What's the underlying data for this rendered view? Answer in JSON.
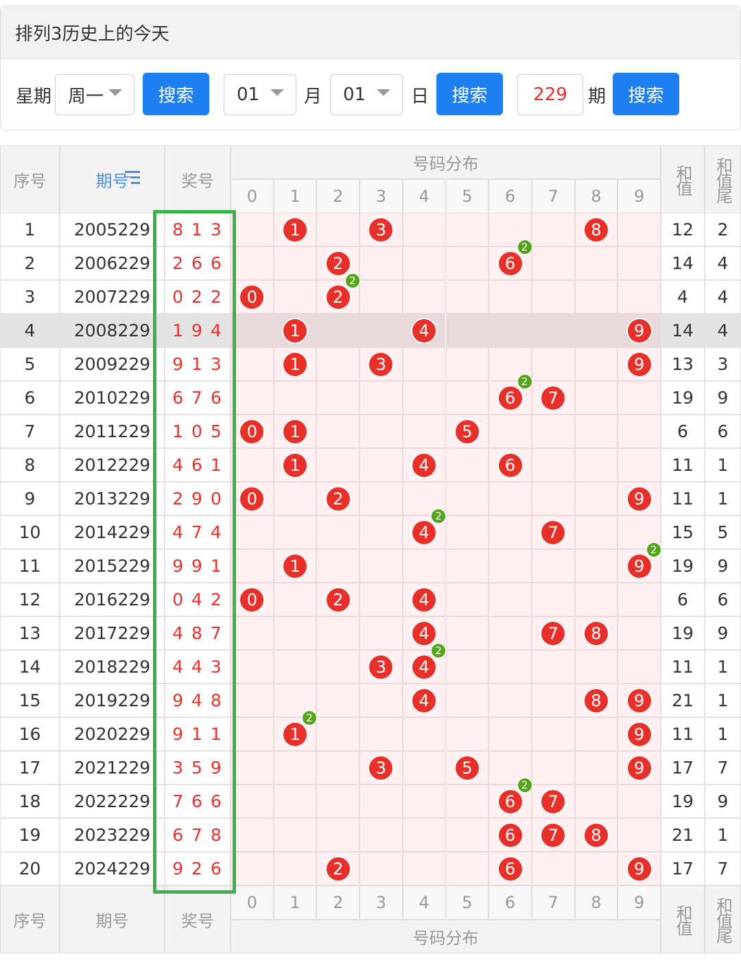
{
  "header": {
    "title": "排列3历史上的今天"
  },
  "controls": {
    "weekday_label": "星期",
    "weekday": "周一",
    "search": "搜索",
    "month": "01",
    "month_label": "月",
    "day": "01",
    "day_label": "日",
    "issue": "229",
    "issue_label": "期"
  },
  "table": {
    "columns": {
      "index": "序号",
      "issue": "期号",
      "number": "奖号",
      "distribution": "号码分布",
      "sum": "和值",
      "sum_tail": "和值尾"
    },
    "digits": [
      0,
      1,
      2,
      3,
      4,
      5,
      6,
      7,
      8,
      9
    ],
    "highlight_row": 4,
    "rows": [
      {
        "index": 1,
        "issue": 2005229,
        "number": "8 1 3",
        "sum": 12,
        "tail": 2,
        "balls": [
          {
            "digit": 1
          },
          {
            "digit": 3
          },
          {
            "digit": 8
          }
        ]
      },
      {
        "index": 2,
        "issue": 2006229,
        "number": "2 6 6",
        "sum": 14,
        "tail": 4,
        "balls": [
          {
            "digit": 2
          },
          {
            "digit": 6,
            "count": 2
          }
        ]
      },
      {
        "index": 3,
        "issue": 2007229,
        "number": "0 2 2",
        "sum": 4,
        "tail": 4,
        "balls": [
          {
            "digit": 0
          },
          {
            "digit": 2,
            "count": 2
          }
        ]
      },
      {
        "index": 4,
        "issue": 2008229,
        "number": "1 9 4",
        "sum": 14,
        "tail": 4,
        "balls": [
          {
            "digit": 1
          },
          {
            "digit": 4
          },
          {
            "digit": 9
          }
        ]
      },
      {
        "index": 5,
        "issue": 2009229,
        "number": "9 1 3",
        "sum": 13,
        "tail": 3,
        "balls": [
          {
            "digit": 1
          },
          {
            "digit": 3
          },
          {
            "digit": 9
          }
        ]
      },
      {
        "index": 6,
        "issue": 2010229,
        "number": "6 7 6",
        "sum": 19,
        "tail": 9,
        "balls": [
          {
            "digit": 6,
            "count": 2
          },
          {
            "digit": 7
          }
        ]
      },
      {
        "index": 7,
        "issue": 2011229,
        "number": "1 0 5",
        "sum": 6,
        "tail": 6,
        "balls": [
          {
            "digit": 0
          },
          {
            "digit": 1
          },
          {
            "digit": 5
          }
        ]
      },
      {
        "index": 8,
        "issue": 2012229,
        "number": "4 6 1",
        "sum": 11,
        "tail": 1,
        "balls": [
          {
            "digit": 1
          },
          {
            "digit": 4
          },
          {
            "digit": 6
          }
        ]
      },
      {
        "index": 9,
        "issue": 2013229,
        "number": "2 9 0",
        "sum": 11,
        "tail": 1,
        "balls": [
          {
            "digit": 0
          },
          {
            "digit": 2
          },
          {
            "digit": 9
          }
        ]
      },
      {
        "index": 10,
        "issue": 2014229,
        "number": "4 7 4",
        "sum": 15,
        "tail": 5,
        "balls": [
          {
            "digit": 4,
            "count": 2
          },
          {
            "digit": 7
          }
        ]
      },
      {
        "index": 11,
        "issue": 2015229,
        "number": "9 9 1",
        "sum": 19,
        "tail": 9,
        "balls": [
          {
            "digit": 1
          },
          {
            "digit": 9,
            "count": 2
          }
        ]
      },
      {
        "index": 12,
        "issue": 2016229,
        "number": "0 4 2",
        "sum": 6,
        "tail": 6,
        "balls": [
          {
            "digit": 0
          },
          {
            "digit": 2
          },
          {
            "digit": 4
          }
        ]
      },
      {
        "index": 13,
        "issue": 2017229,
        "number": "4 8 7",
        "sum": 19,
        "tail": 9,
        "balls": [
          {
            "digit": 4
          },
          {
            "digit": 7
          },
          {
            "digit": 8
          }
        ]
      },
      {
        "index": 14,
        "issue": 2018229,
        "number": "4 4 3",
        "sum": 11,
        "tail": 1,
        "balls": [
          {
            "digit": 3
          },
          {
            "digit": 4,
            "count": 2
          }
        ]
      },
      {
        "index": 15,
        "issue": 2019229,
        "number": "9 4 8",
        "sum": 21,
        "tail": 1,
        "balls": [
          {
            "digit": 4
          },
          {
            "digit": 8
          },
          {
            "digit": 9
          }
        ]
      },
      {
        "index": 16,
        "issue": 2020229,
        "number": "9 1 1",
        "sum": 11,
        "tail": 1,
        "balls": [
          {
            "digit": 1,
            "count": 2
          },
          {
            "digit": 9
          }
        ]
      },
      {
        "index": 17,
        "issue": 2021229,
        "number": "3 5 9",
        "sum": 17,
        "tail": 7,
        "balls": [
          {
            "digit": 3
          },
          {
            "digit": 5
          },
          {
            "digit": 9
          }
        ]
      },
      {
        "index": 18,
        "issue": 2022229,
        "number": "7 6 6",
        "sum": 19,
        "tail": 9,
        "balls": [
          {
            "digit": 6,
            "count": 2
          },
          {
            "digit": 7
          }
        ]
      },
      {
        "index": 19,
        "issue": 2023229,
        "number": "6 7 8",
        "sum": 21,
        "tail": 1,
        "balls": [
          {
            "digit": 6
          },
          {
            "digit": 7
          },
          {
            "digit": 8
          }
        ]
      },
      {
        "index": 20,
        "issue": 2024229,
        "number": "9 2 6",
        "sum": 17,
        "tail": 7,
        "balls": [
          {
            "digit": 2
          },
          {
            "digit": 6
          },
          {
            "digit": 9
          }
        ]
      }
    ]
  }
}
